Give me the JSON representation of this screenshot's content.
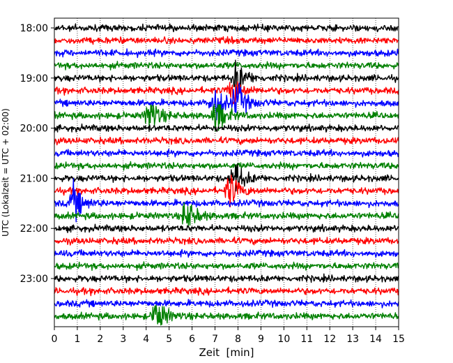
{
  "chart_data": {
    "type": "line",
    "title": "",
    "xlabel": "Zeit  [min]",
    "ylabel": "UTC (Lokalzeit = UTC + 02:00)",
    "xlim": [
      0,
      15
    ],
    "x_ticks": [
      "0",
      "1",
      "2",
      "3",
      "4",
      "5",
      "6",
      "7",
      "8",
      "9",
      "10",
      "11",
      "12",
      "13",
      "14",
      "15"
    ],
    "y_ticks": [
      "18:00",
      "19:00",
      "20:00",
      "21:00",
      "22:00",
      "23:00"
    ],
    "y_tick_traces": [
      0,
      4,
      8,
      12,
      16,
      20
    ],
    "grid": "vertical dotted",
    "colors": [
      "#000000",
      "#ff0000",
      "#0000ff",
      "#008000"
    ],
    "trace_interval_min": 15,
    "trace_count": 24,
    "events": [
      {
        "trace": 4,
        "time_min": 7.8
      },
      {
        "trace": 5,
        "time_min": 7.6
      },
      {
        "trace": 6,
        "time_min": 7.8
      },
      {
        "trace": 6,
        "time_min": 6.8
      },
      {
        "trace": 7,
        "time_min": 4.0
      },
      {
        "trace": 7,
        "time_min": 6.9
      },
      {
        "trace": 12,
        "time_min": 7.7
      },
      {
        "trace": 13,
        "time_min": 7.5
      },
      {
        "trace": 14,
        "time_min": 0.7
      },
      {
        "trace": 15,
        "time_min": 5.6
      },
      {
        "trace": 23,
        "time_min": 4.3
      }
    ]
  }
}
